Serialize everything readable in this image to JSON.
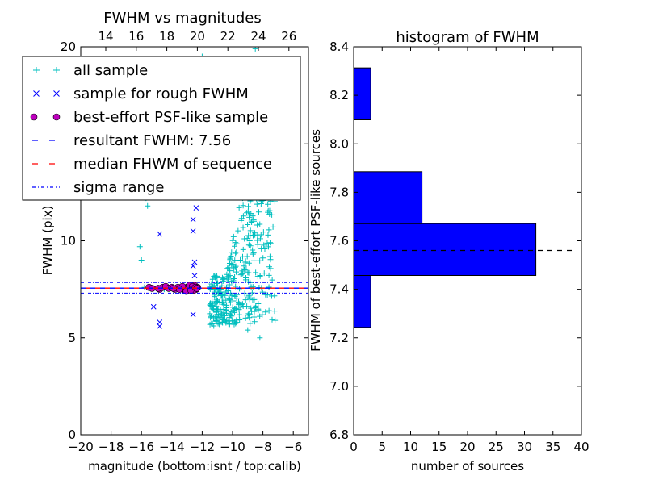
{
  "chart_data": [
    {
      "type": "scatter",
      "title": "FWHM vs magnitudes",
      "xlabel": "magnitude (bottom:isnt / top:calib)",
      "ylabel": "FWHM (pix)",
      "xlim": [
        -20,
        -5
      ],
      "ylim": [
        0,
        20
      ],
      "x_ticks": [
        "−20",
        "−18",
        "−16",
        "−14",
        "−12",
        "−10",
        "−8",
        "−6"
      ],
      "y_ticks": [
        "0",
        "5",
        "10",
        "15",
        "20"
      ],
      "top_axis_ticks": [
        "14",
        "16",
        "18",
        "20",
        "22",
        "24",
        "26"
      ],
      "colors": {
        "all_sample": "#00bfbf",
        "rough_sample": "#0000ff",
        "psf_sample": "#bf00bf",
        "resultant": "#0000ff",
        "median": "#ff0000",
        "sigma": "#0000ff"
      },
      "legend": {
        "placement": "upper-left",
        "entries": [
          {
            "label": "all sample",
            "marker": "plus",
            "color": "#00bfbf"
          },
          {
            "label": "sample for rough FWHM",
            "marker": "cross",
            "color": "#0000ff"
          },
          {
            "label": "best-effort PSF-like sample",
            "marker": "circle",
            "color": "#bf00bf"
          },
          {
            "label": "resultant FWHM: 7.56",
            "marker": "dashed",
            "color": "#0000ff"
          },
          {
            "label": "median FHWM of sequence",
            "marker": "dashed",
            "color": "#ff0000"
          },
          {
            "label": "sigma range",
            "marker": "dashdot",
            "color": "#0000ff"
          }
        ]
      },
      "hlines": {
        "resultant_fwhm": 7.56,
        "median_fwhm": 7.56,
        "sigma_range": [
          7.3,
          7.85
        ]
      },
      "series": [
        {
          "name": "sample for rough FWHM",
          "points": [
            [
              -14.8,
              10.35
            ],
            [
              -15.2,
              6.6
            ],
            [
              -14.8,
              5.8
            ],
            [
              -14.8,
              5.6
            ],
            [
              -12.6,
              6.2
            ],
            [
              -12.6,
              8.7
            ],
            [
              -12.5,
              8.9
            ],
            [
              -12.5,
              8.2
            ],
            [
              -12.6,
              10.5
            ],
            [
              -12.6,
              11.1
            ],
            [
              -12.4,
              11.7
            ],
            [
              -12.3,
              12.3
            ],
            [
              -12.5,
              12.7
            ],
            [
              -12.4,
              12.8
            ],
            [
              -13.4,
              7.4
            ],
            [
              -12.9,
              7.4
            ]
          ]
        },
        {
          "name": "best-effort PSF-like sample",
          "points": [
            [
              -15.5,
              7.6
            ],
            [
              -15.3,
              7.55
            ],
            [
              -14.8,
              7.5
            ],
            [
              -14.6,
              7.6
            ],
            [
              -14.4,
              7.65
            ],
            [
              -14.2,
              7.55
            ],
            [
              -13.8,
              7.5
            ],
            [
              -13.6,
              7.6
            ],
            [
              -13.4,
              7.55
            ],
            [
              -13.2,
              7.5
            ],
            [
              -13.0,
              7.6
            ],
            [
              -12.9,
              7.65
            ],
            [
              -12.8,
              7.5
            ],
            [
              -12.7,
              7.6
            ],
            [
              -12.6,
              7.55
            ],
            [
              -12.5,
              7.7
            ],
            [
              -12.4,
              7.5
            ],
            [
              -12.3,
              7.6
            ],
            [
              -14.9,
              7.55
            ],
            [
              -13.1,
              7.45
            ],
            [
              -12.95,
              7.55
            ],
            [
              -13.3,
              7.65
            ],
            [
              -12.55,
              7.45
            ],
            [
              -12.85,
              7.7
            ],
            [
              -13.05,
              7.4
            ],
            [
              -12.65,
              7.65
            ],
            [
              -12.75,
              7.45
            ],
            [
              -12.45,
              7.6
            ],
            [
              -13.5,
              7.5
            ],
            [
              -14.0,
              7.6
            ],
            [
              -13.9,
              7.55
            ],
            [
              -12.35,
              7.55
            ]
          ]
        }
      ]
    },
    {
      "type": "bar",
      "orientation": "horizontal",
      "title": "histogram of FWHM",
      "xlabel": "number of sources",
      "ylabel": "FWHM of best-effort PSF-like sources",
      "xlim": [
        0,
        40
      ],
      "ylim": [
        6.8,
        8.4
      ],
      "x_ticks": [
        "0",
        "5",
        "10",
        "15",
        "20",
        "25",
        "30",
        "35",
        "40"
      ],
      "y_ticks": [
        "6.8",
        "7.0",
        "7.2",
        "7.4",
        "7.6",
        "7.8",
        "8.0",
        "8.2",
        "8.4"
      ],
      "bar_color": "#0000ff",
      "bins": [
        {
          "from": 7.243,
          "to": 7.457,
          "count": 3
        },
        {
          "from": 7.457,
          "to": 7.671,
          "count": 32
        },
        {
          "from": 7.671,
          "to": 7.885,
          "count": 12
        },
        {
          "from": 7.885,
          "to": 8.099,
          "count": 0
        },
        {
          "from": 8.099,
          "to": 8.313,
          "count": 3
        }
      ],
      "hline": 7.56
    }
  ]
}
